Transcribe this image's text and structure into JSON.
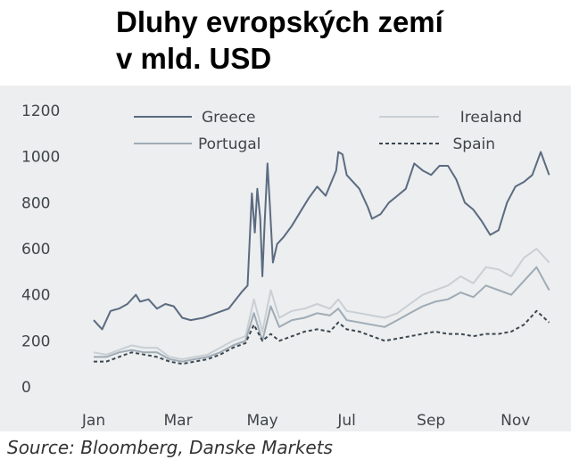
{
  "title": {
    "line1": "Dluhy evropských zemí",
    "line2": "v mld. USD"
  },
  "source": "Source: Bloomberg, Danske Markets",
  "chart_data": {
    "type": "line",
    "title": "Dluhy evropských zemí v mld. USD",
    "xlabel": "",
    "ylabel": "",
    "ylim": [
      0,
      1200
    ],
    "yticks": [
      0,
      200,
      400,
      600,
      800,
      1000,
      1200
    ],
    "xlim": [
      0,
      11
    ],
    "xticks": [
      {
        "label": "Jan",
        "x": 0
      },
      {
        "label": "Mar",
        "x": 2
      },
      {
        "label": "May",
        "x": 4
      },
      {
        "label": "Jul",
        "x": 6
      },
      {
        "label": "Sep",
        "x": 8
      },
      {
        "label": "Nov",
        "x": 10
      }
    ],
    "grid": false,
    "legend": "top",
    "series": [
      {
        "name": "Greece",
        "color": "#5b6b80",
        "dash": "solid",
        "points": [
          [
            0,
            290
          ],
          [
            0.1,
            270
          ],
          [
            0.2,
            250
          ],
          [
            0.4,
            330
          ],
          [
            0.6,
            340
          ],
          [
            0.8,
            360
          ],
          [
            1.0,
            400
          ],
          [
            1.1,
            370
          ],
          [
            1.3,
            380
          ],
          [
            1.5,
            340
          ],
          [
            1.7,
            360
          ],
          [
            1.9,
            350
          ],
          [
            2.1,
            300
          ],
          [
            2.3,
            290
          ],
          [
            2.6,
            300
          ],
          [
            2.9,
            320
          ],
          [
            3.2,
            340
          ],
          [
            3.5,
            410
          ],
          [
            3.65,
            440
          ],
          [
            3.75,
            840
          ],
          [
            3.82,
            670
          ],
          [
            3.88,
            860
          ],
          [
            3.95,
            730
          ],
          [
            4.0,
            480
          ],
          [
            4.05,
            700
          ],
          [
            4.12,
            970
          ],
          [
            4.18,
            780
          ],
          [
            4.25,
            540
          ],
          [
            4.35,
            620
          ],
          [
            4.5,
            650
          ],
          [
            4.7,
            700
          ],
          [
            4.9,
            760
          ],
          [
            5.1,
            820
          ],
          [
            5.3,
            870
          ],
          [
            5.5,
            830
          ],
          [
            5.75,
            940
          ],
          [
            5.8,
            1020
          ],
          [
            5.9,
            1010
          ],
          [
            6.0,
            920
          ],
          [
            6.3,
            860
          ],
          [
            6.5,
            780
          ],
          [
            6.6,
            730
          ],
          [
            6.8,
            750
          ],
          [
            7.0,
            800
          ],
          [
            7.2,
            830
          ],
          [
            7.4,
            860
          ],
          [
            7.6,
            970
          ],
          [
            7.8,
            940
          ],
          [
            8.0,
            920
          ],
          [
            8.2,
            960
          ],
          [
            8.4,
            960
          ],
          [
            8.6,
            900
          ],
          [
            8.8,
            800
          ],
          [
            9.0,
            770
          ],
          [
            9.2,
            720
          ],
          [
            9.4,
            660
          ],
          [
            9.6,
            680
          ],
          [
            9.8,
            800
          ],
          [
            10.0,
            870
          ],
          [
            10.2,
            890
          ],
          [
            10.4,
            920
          ],
          [
            10.6,
            1020
          ],
          [
            10.8,
            920
          ]
        ]
      },
      {
        "name": "Irealand",
        "color": "#c9cfd4",
        "dash": "solid",
        "points": [
          [
            0,
            150
          ],
          [
            0.3,
            140
          ],
          [
            0.6,
            160
          ],
          [
            0.9,
            180
          ],
          [
            1.2,
            170
          ],
          [
            1.5,
            170
          ],
          [
            1.8,
            130
          ],
          [
            2.1,
            120
          ],
          [
            2.4,
            130
          ],
          [
            2.7,
            140
          ],
          [
            3.0,
            170
          ],
          [
            3.3,
            200
          ],
          [
            3.6,
            220
          ],
          [
            3.8,
            380
          ],
          [
            4.0,
            240
          ],
          [
            4.2,
            420
          ],
          [
            4.4,
            300
          ],
          [
            4.7,
            330
          ],
          [
            5.0,
            340
          ],
          [
            5.3,
            360
          ],
          [
            5.6,
            340
          ],
          [
            5.8,
            380
          ],
          [
            6.0,
            330
          ],
          [
            6.3,
            320
          ],
          [
            6.6,
            310
          ],
          [
            6.9,
            300
          ],
          [
            7.2,
            320
          ],
          [
            7.5,
            360
          ],
          [
            7.8,
            400
          ],
          [
            8.1,
            420
          ],
          [
            8.4,
            440
          ],
          [
            8.7,
            480
          ],
          [
            9.0,
            450
          ],
          [
            9.3,
            520
          ],
          [
            9.6,
            510
          ],
          [
            9.9,
            480
          ],
          [
            10.2,
            560
          ],
          [
            10.5,
            600
          ],
          [
            10.8,
            540
          ]
        ]
      },
      {
        "name": "Portugal",
        "color": "#9fabb5",
        "dash": "solid",
        "points": [
          [
            0,
            130
          ],
          [
            0.3,
            130
          ],
          [
            0.6,
            150
          ],
          [
            0.9,
            160
          ],
          [
            1.2,
            150
          ],
          [
            1.5,
            150
          ],
          [
            1.8,
            120
          ],
          [
            2.1,
            110
          ],
          [
            2.4,
            120
          ],
          [
            2.7,
            130
          ],
          [
            3.0,
            150
          ],
          [
            3.3,
            180
          ],
          [
            3.6,
            200
          ],
          [
            3.8,
            320
          ],
          [
            4.0,
            200
          ],
          [
            4.2,
            350
          ],
          [
            4.4,
            260
          ],
          [
            4.7,
            290
          ],
          [
            5.0,
            300
          ],
          [
            5.3,
            320
          ],
          [
            5.6,
            310
          ],
          [
            5.8,
            340
          ],
          [
            6.0,
            290
          ],
          [
            6.3,
            280
          ],
          [
            6.6,
            270
          ],
          [
            6.9,
            260
          ],
          [
            7.2,
            290
          ],
          [
            7.5,
            320
          ],
          [
            7.8,
            350
          ],
          [
            8.1,
            370
          ],
          [
            8.4,
            380
          ],
          [
            8.7,
            410
          ],
          [
            9.0,
            390
          ],
          [
            9.3,
            440
          ],
          [
            9.6,
            420
          ],
          [
            9.9,
            400
          ],
          [
            10.2,
            460
          ],
          [
            10.5,
            520
          ],
          [
            10.8,
            420
          ]
        ]
      },
      {
        "name": "Spain",
        "color": "#3c4650",
        "dash": "dashed",
        "points": [
          [
            0,
            110
          ],
          [
            0.3,
            110
          ],
          [
            0.6,
            130
          ],
          [
            0.9,
            150
          ],
          [
            1.2,
            140
          ],
          [
            1.5,
            130
          ],
          [
            1.8,
            110
          ],
          [
            2.1,
            100
          ],
          [
            2.4,
            110
          ],
          [
            2.7,
            120
          ],
          [
            3.0,
            140
          ],
          [
            3.3,
            170
          ],
          [
            3.6,
            190
          ],
          [
            3.8,
            270
          ],
          [
            4.0,
            200
          ],
          [
            4.2,
            230
          ],
          [
            4.4,
            200
          ],
          [
            4.7,
            220
          ],
          [
            5.0,
            240
          ],
          [
            5.3,
            250
          ],
          [
            5.6,
            240
          ],
          [
            5.8,
            280
          ],
          [
            6.0,
            250
          ],
          [
            6.3,
            240
          ],
          [
            6.6,
            220
          ],
          [
            6.9,
            200
          ],
          [
            7.2,
            210
          ],
          [
            7.5,
            220
          ],
          [
            7.8,
            230
          ],
          [
            8.1,
            240
          ],
          [
            8.4,
            230
          ],
          [
            8.7,
            230
          ],
          [
            9.0,
            220
          ],
          [
            9.3,
            230
          ],
          [
            9.6,
            230
          ],
          [
            9.9,
            240
          ],
          [
            10.2,
            270
          ],
          [
            10.5,
            330
          ],
          [
            10.8,
            280
          ]
        ]
      }
    ]
  }
}
